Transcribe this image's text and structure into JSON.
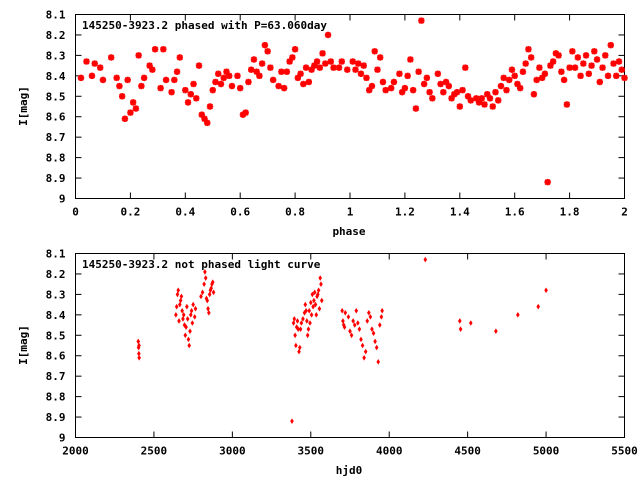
{
  "colors": {
    "points": "#ff0000",
    "axes": "#000000",
    "background": "#ffffff"
  },
  "chart_data": [
    {
      "type": "scatter",
      "title": "145250-3923.2 phased with P=63.060day",
      "xlabel": "phase",
      "ylabel": "I[mag]",
      "xlim": [
        0,
        2
      ],
      "ylim": [
        9,
        8.1
      ],
      "y_inverted": true,
      "marker": "star",
      "x_ticks": [
        "0",
        "0.2",
        "0.4",
        "0.6",
        "0.8",
        "1",
        "1.2",
        "1.4",
        "1.6",
        "1.8",
        "2"
      ],
      "y_ticks": [
        "8.1",
        "8.2",
        "8.3",
        "8.4",
        "8.5",
        "8.6",
        "8.7",
        "8.8",
        "8.9",
        "9"
      ],
      "points": [
        [
          0.02,
          8.41
        ],
        [
          0.04,
          8.33
        ],
        [
          0.06,
          8.4
        ],
        [
          0.07,
          8.34
        ],
        [
          0.09,
          8.36
        ],
        [
          0.1,
          8.42
        ],
        [
          0.13,
          8.31
        ],
        [
          0.15,
          8.41
        ],
        [
          0.16,
          8.45
        ],
        [
          0.17,
          8.5
        ],
        [
          0.18,
          8.61
        ],
        [
          0.19,
          8.42
        ],
        [
          0.2,
          8.58
        ],
        [
          0.21,
          8.53
        ],
        [
          0.22,
          8.56
        ],
        [
          0.23,
          8.3
        ],
        [
          0.24,
          8.45
        ],
        [
          0.25,
          8.41
        ],
        [
          0.27,
          8.35
        ],
        [
          0.28,
          8.37
        ],
        [
          0.29,
          8.27
        ],
        [
          0.31,
          8.46
        ],
        [
          0.32,
          8.27
        ],
        [
          0.33,
          8.42
        ],
        [
          0.35,
          8.48
        ],
        [
          0.36,
          8.42
        ],
        [
          0.37,
          8.38
        ],
        [
          0.38,
          8.31
        ],
        [
          0.4,
          8.47
        ],
        [
          0.41,
          8.53
        ],
        [
          0.42,
          8.49
        ],
        [
          0.43,
          8.44
        ],
        [
          0.44,
          8.51
        ],
        [
          0.45,
          8.35
        ],
        [
          0.46,
          8.59
        ],
        [
          0.47,
          8.61
        ],
        [
          0.48,
          8.63
        ],
        [
          0.49,
          8.55
        ],
        [
          0.5,
          8.47
        ],
        [
          0.51,
          8.43
        ],
        [
          0.52,
          8.39
        ],
        [
          0.53,
          8.44
        ],
        [
          0.54,
          8.41
        ],
        [
          0.55,
          8.38
        ],
        [
          0.56,
          8.4
        ],
        [
          0.57,
          8.45
        ],
        [
          0.59,
          8.4
        ],
        [
          0.6,
          8.46
        ],
        [
          0.61,
          8.59
        ],
        [
          0.62,
          8.58
        ],
        [
          0.63,
          8.43
        ],
        [
          0.64,
          8.37
        ],
        [
          0.65,
          8.32
        ],
        [
          0.66,
          8.38
        ],
        [
          0.67,
          8.4
        ],
        [
          0.68,
          8.34
        ],
        [
          0.69,
          8.25
        ],
        [
          0.7,
          8.28
        ],
        [
          0.71,
          8.36
        ],
        [
          0.72,
          8.42
        ],
        [
          0.74,
          8.45
        ],
        [
          0.75,
          8.38
        ],
        [
          0.76,
          8.46
        ],
        [
          0.77,
          8.38
        ],
        [
          0.78,
          8.33
        ],
        [
          0.79,
          8.31
        ],
        [
          0.8,
          8.27
        ],
        [
          0.81,
          8.41
        ],
        [
          0.82,
          8.39
        ],
        [
          0.83,
          8.44
        ],
        [
          0.84,
          8.36
        ],
        [
          0.85,
          8.43
        ],
        [
          0.86,
          8.37
        ],
        [
          0.87,
          8.35
        ],
        [
          0.88,
          8.33
        ],
        [
          0.89,
          8.36
        ],
        [
          0.9,
          8.29
        ],
        [
          0.91,
          8.34
        ],
        [
          0.92,
          8.2
        ],
        [
          0.93,
          8.33
        ],
        [
          0.94,
          8.36
        ],
        [
          0.96,
          8.36
        ],
        [
          0.97,
          8.33
        ],
        [
          0.99,
          8.37
        ],
        [
          1.01,
          8.33
        ],
        [
          1.02,
          8.37
        ],
        [
          1.03,
          8.34
        ],
        [
          1.04,
          8.39
        ],
        [
          1.05,
          8.35
        ],
        [
          1.06,
          8.41
        ],
        [
          1.07,
          8.47
        ],
        [
          1.08,
          8.45
        ],
        [
          1.09,
          8.28
        ],
        [
          1.1,
          8.37
        ],
        [
          1.11,
          8.31
        ],
        [
          1.12,
          8.43
        ],
        [
          1.13,
          8.47
        ],
        [
          1.15,
          8.46
        ],
        [
          1.16,
          8.43
        ],
        [
          1.18,
          8.39
        ],
        [
          1.19,
          8.48
        ],
        [
          1.2,
          8.46
        ],
        [
          1.21,
          8.4
        ],
        [
          1.22,
          8.32
        ],
        [
          1.23,
          8.47
        ],
        [
          1.24,
          8.56
        ],
        [
          1.25,
          8.38
        ],
        [
          1.26,
          8.13
        ],
        [
          1.27,
          8.44
        ],
        [
          1.28,
          8.41
        ],
        [
          1.29,
          8.48
        ],
        [
          1.3,
          8.51
        ],
        [
          1.32,
          8.39
        ],
        [
          1.33,
          8.44
        ],
        [
          1.34,
          8.48
        ],
        [
          1.35,
          8.43
        ],
        [
          1.36,
          8.45
        ],
        [
          1.37,
          8.51
        ],
        [
          1.38,
          8.49
        ],
        [
          1.39,
          8.48
        ],
        [
          1.4,
          8.55
        ],
        [
          1.41,
          8.47
        ],
        [
          1.42,
          8.36
        ],
        [
          1.43,
          8.5
        ],
        [
          1.44,
          8.52
        ],
        [
          1.46,
          8.51
        ],
        [
          1.47,
          8.53
        ],
        [
          1.48,
          8.51
        ],
        [
          1.49,
          8.54
        ],
        [
          1.5,
          8.49
        ],
        [
          1.51,
          8.51
        ],
        [
          1.52,
          8.55
        ],
        [
          1.53,
          8.48
        ],
        [
          1.54,
          8.52
        ],
        [
          1.55,
          8.45
        ],
        [
          1.56,
          8.41
        ],
        [
          1.57,
          8.47
        ],
        [
          1.58,
          8.42
        ],
        [
          1.59,
          8.37
        ],
        [
          1.6,
          8.4
        ],
        [
          1.61,
          8.44
        ],
        [
          1.62,
          8.46
        ],
        [
          1.63,
          8.38
        ],
        [
          1.64,
          8.34
        ],
        [
          1.65,
          8.27
        ],
        [
          1.66,
          8.31
        ],
        [
          1.67,
          8.49
        ],
        [
          1.68,
          8.42
        ],
        [
          1.69,
          8.36
        ],
        [
          1.7,
          8.41
        ],
        [
          1.71,
          8.39
        ],
        [
          1.72,
          8.92
        ],
        [
          1.73,
          8.35
        ],
        [
          1.74,
          8.33
        ],
        [
          1.75,
          8.29
        ],
        [
          1.76,
          8.3
        ],
        [
          1.77,
          8.38
        ],
        [
          1.78,
          8.42
        ],
        [
          1.79,
          8.54
        ],
        [
          1.8,
          8.36
        ],
        [
          1.81,
          8.28
        ],
        [
          1.82,
          8.36
        ],
        [
          1.83,
          8.31
        ],
        [
          1.84,
          8.4
        ],
        [
          1.85,
          8.34
        ],
        [
          1.86,
          8.3
        ],
        [
          1.87,
          8.39
        ],
        [
          1.88,
          8.35
        ],
        [
          1.89,
          8.28
        ],
        [
          1.9,
          8.32
        ],
        [
          1.91,
          8.43
        ],
        [
          1.92,
          8.36
        ],
        [
          1.93,
          8.3
        ],
        [
          1.94,
          8.4
        ],
        [
          1.95,
          8.25
        ],
        [
          1.96,
          8.34
        ],
        [
          1.97,
          8.4
        ],
        [
          1.98,
          8.33
        ],
        [
          1.99,
          8.37
        ],
        [
          2.0,
          8.41
        ]
      ]
    },
    {
      "type": "scatter",
      "title": "145250-3923.2 not phased light curve",
      "xlabel": "hjd0",
      "ylabel": "I[mag]",
      "xlim": [
        2000,
        5500
      ],
      "ylim": [
        9,
        8.1
      ],
      "y_inverted": true,
      "marker": "diamond",
      "x_ticks": [
        "2000",
        "2500",
        "3000",
        "3500",
        "4000",
        "4500",
        "5000",
        "5500"
      ],
      "y_ticks": [
        "8.1",
        "8.2",
        "8.3",
        "8.4",
        "8.5",
        "8.6",
        "8.7",
        "8.8",
        "8.9",
        "9"
      ],
      "points": [
        [
          2400,
          8.53
        ],
        [
          2402,
          8.56
        ],
        [
          2404,
          8.59
        ],
        [
          2406,
          8.61
        ],
        [
          2405,
          8.55
        ],
        [
          2640,
          8.4
        ],
        [
          2645,
          8.36
        ],
        [
          2650,
          8.3
        ],
        [
          2655,
          8.28
        ],
        [
          2660,
          8.43
        ],
        [
          2665,
          8.35
        ],
        [
          2670,
          8.33
        ],
        [
          2675,
          8.31
        ],
        [
          2680,
          8.38
        ],
        [
          2685,
          8.42
        ],
        [
          2690,
          8.4
        ],
        [
          2695,
          8.45
        ],
        [
          2700,
          8.5
        ],
        [
          2705,
          8.46
        ],
        [
          2710,
          8.36
        ],
        [
          2715,
          8.42
        ],
        [
          2720,
          8.52
        ],
        [
          2725,
          8.55
        ],
        [
          2730,
          8.48
        ],
        [
          2735,
          8.4
        ],
        [
          2740,
          8.38
        ],
        [
          2745,
          8.44
        ],
        [
          2750,
          8.35
        ],
        [
          2760,
          8.41
        ],
        [
          2765,
          8.37
        ],
        [
          2800,
          8.31
        ],
        [
          2810,
          8.29
        ],
        [
          2820,
          8.25
        ],
        [
          2825,
          8.19
        ],
        [
          2830,
          8.22
        ],
        [
          2835,
          8.32
        ],
        [
          2840,
          8.33
        ],
        [
          2845,
          8.37
        ],
        [
          2850,
          8.39
        ],
        [
          2855,
          8.3
        ],
        [
          2860,
          8.28
        ],
        [
          2865,
          8.27
        ],
        [
          2870,
          8.25
        ],
        [
          2875,
          8.24
        ],
        [
          2880,
          8.29
        ],
        [
          3380,
          8.92
        ],
        [
          3390,
          8.44
        ],
        [
          3395,
          8.42
        ],
        [
          3400,
          8.5
        ],
        [
          3405,
          8.55
        ],
        [
          3410,
          8.46
        ],
        [
          3415,
          8.43
        ],
        [
          3420,
          8.47
        ],
        [
          3425,
          8.58
        ],
        [
          3430,
          8.56
        ],
        [
          3435,
          8.47
        ],
        [
          3440,
          8.44
        ],
        [
          3450,
          8.42
        ],
        [
          3460,
          8.39
        ],
        [
          3465,
          8.35
        ],
        [
          3470,
          8.38
        ],
        [
          3475,
          8.43
        ],
        [
          3480,
          8.5
        ],
        [
          3485,
          8.47
        ],
        [
          3490,
          8.38
        ],
        [
          3495,
          8.44
        ],
        [
          3500,
          8.34
        ],
        [
          3505,
          8.4
        ],
        [
          3510,
          8.3
        ],
        [
          3515,
          8.36
        ],
        [
          3520,
          8.33
        ],
        [
          3525,
          8.29
        ],
        [
          3530,
          8.35
        ],
        [
          3535,
          8.4
        ],
        [
          3540,
          8.31
        ],
        [
          3545,
          8.3
        ],
        [
          3550,
          8.28
        ],
        [
          3555,
          8.37
        ],
        [
          3560,
          8.22
        ],
        [
          3565,
          8.25
        ],
        [
          3570,
          8.33
        ],
        [
          3700,
          8.38
        ],
        [
          3705,
          8.43
        ],
        [
          3710,
          8.45
        ],
        [
          3715,
          8.46
        ],
        [
          3720,
          8.39
        ],
        [
          3740,
          8.41
        ],
        [
          3750,
          8.48
        ],
        [
          3760,
          8.5
        ],
        [
          3770,
          8.43
        ],
        [
          3780,
          8.45
        ],
        [
          3790,
          8.38
        ],
        [
          3800,
          8.44
        ],
        [
          3810,
          8.47
        ],
        [
          3820,
          8.52
        ],
        [
          3830,
          8.55
        ],
        [
          3840,
          8.61
        ],
        [
          3850,
          8.58
        ],
        [
          3860,
          8.43
        ],
        [
          3870,
          8.39
        ],
        [
          3880,
          8.41
        ],
        [
          3890,
          8.47
        ],
        [
          3900,
          8.49
        ],
        [
          3910,
          8.53
        ],
        [
          3920,
          8.56
        ],
        [
          3930,
          8.63
        ],
        [
          3940,
          8.45
        ],
        [
          3950,
          8.41
        ],
        [
          3955,
          8.38
        ],
        [
          4230,
          8.13
        ],
        [
          4450,
          8.43
        ],
        [
          4455,
          8.47
        ],
        [
          4520,
          8.44
        ],
        [
          4680,
          8.48
        ],
        [
          4820,
          8.4
        ],
        [
          4950,
          8.36
        ],
        [
          5000,
          8.28
        ]
      ]
    }
  ]
}
